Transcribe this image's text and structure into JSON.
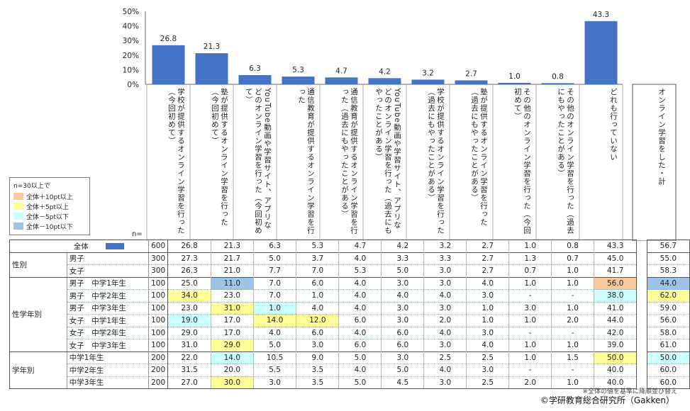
{
  "chart_data": {
    "type": "bar",
    "y_ticks": [
      "50%",
      "40%",
      "30%",
      "20%",
      "10%",
      "0%"
    ],
    "ylim": [
      0,
      50
    ],
    "categories": [
      "学校が提供するオンライン学習を行った（今回初めて）",
      "塾が提供するオンライン学習を行った（今回初めて）",
      "YouTube動画や学習サイト、アプリなどのオンライン学習を行った（今回初めて）",
      "通信教育が提供するオンライン学習を行った",
      "通信教育が提供するオンライン学習を行った（過去にもやったことがある）",
      "YouTube動画や学習サイト、アプリなどのオンライン学習を行った（過去にもやったことがある）",
      "学校が提供するオンライン学習を行った（過去にもやったことがある）",
      "塾が提供するオンライン学習を行った（過去にもやったことがある）",
      "その他のオンライン学習を行った（今回初めて）",
      "その他のオンライン学習を行った（過去にもやったことがある）",
      "どれも行っていない"
    ],
    "values": [
      26.8,
      21.3,
      6.3,
      5.3,
      4.7,
      4.2,
      3.2,
      2.7,
      1.0,
      0.8,
      43.3
    ],
    "value_labels": [
      "26.8",
      "21.3",
      "6.3",
      "5.3",
      "4.7",
      "4.2",
      "3.2",
      "2.7",
      "1.0",
      "0.8",
      "43.3"
    ],
    "bar_color": "#4472c4",
    "last_column_header": "オンライン学習をした・計"
  },
  "legend": {
    "title": "n=30以上で",
    "items": [
      {
        "label": "全体＋10pt以上",
        "color": "#f8c99c"
      },
      {
        "label": "全体＋5pt以上",
        "color": "#ffff99"
      },
      {
        "label": "全体－5pt以下",
        "color": "#ccffff"
      },
      {
        "label": "全体－10pt以下",
        "color": "#9dc3e6"
      }
    ]
  },
  "n_label": "n=",
  "total_row": {
    "label": "全体",
    "n": "600",
    "values": [
      "26.8",
      "21.3",
      "6.3",
      "5.3",
      "4.7",
      "4.2",
      "3.2",
      "2.7",
      "1.0",
      "0.8",
      "43.3",
      "56.7"
    ]
  },
  "groups": [
    {
      "label": "性別",
      "rows": [
        {
          "label": "男子",
          "n": "300",
          "values": [
            "27.3",
            "21.7",
            "5.0",
            "3.7",
            "4.0",
            "3.3",
            "3.3",
            "2.7",
            "1.3",
            "0.7",
            "45.0",
            "55.0"
          ],
          "hl": [
            null,
            null,
            null,
            null,
            null,
            null,
            null,
            null,
            null,
            null,
            null,
            null
          ]
        },
        {
          "label": "女子",
          "n": "300",
          "values": [
            "26.3",
            "21.0",
            "7.7",
            "7.0",
            "5.3",
            "5.0",
            "3.0",
            "2.7",
            "0.7",
            "1.0",
            "41.7",
            "58.3"
          ],
          "hl": [
            null,
            null,
            null,
            null,
            null,
            null,
            null,
            null,
            null,
            null,
            null,
            null
          ]
        }
      ]
    },
    {
      "label": "性学年別",
      "rows": [
        {
          "label": "男子　中学1年生",
          "n": "100",
          "values": [
            "25.0",
            "11.0",
            "7.0",
            "6.0",
            "4.0",
            "3.0",
            "3.0",
            "4.0",
            "1.0",
            "1.0",
            "56.0",
            "44.0"
          ],
          "hl": [
            null,
            "m10",
            null,
            null,
            null,
            null,
            null,
            null,
            null,
            null,
            "p10",
            "m10"
          ]
        },
        {
          "label": "男子　中学2年生",
          "n": "100",
          "values": [
            "34.0",
            "23.0",
            "7.0",
            "1.0",
            "4.0",
            "4.0",
            "4.0",
            "3.0",
            "-",
            "-",
            "38.0",
            "62.0"
          ],
          "hl": [
            "p5",
            null,
            null,
            null,
            null,
            null,
            null,
            null,
            null,
            null,
            "m5",
            "p5"
          ]
        },
        {
          "label": "男子　中学3年生",
          "n": "100",
          "values": [
            "23.0",
            "31.0",
            "1.0",
            "4.0",
            "4.0",
            "3.0",
            "3.0",
            "1.0",
            "3.0",
            "1.0",
            "41.0",
            "59.0"
          ],
          "hl": [
            null,
            "p5",
            "m5",
            null,
            null,
            null,
            null,
            null,
            null,
            null,
            null,
            null
          ]
        },
        {
          "label": "女子　中学1年生",
          "n": "100",
          "values": [
            "19.0",
            "17.0",
            "14.0",
            "12.0",
            "6.0",
            "3.0",
            "2.0",
            "1.0",
            "1.0",
            "2.0",
            "44.0",
            "56.0"
          ],
          "hl": [
            "m5",
            null,
            "p5",
            "p5",
            null,
            null,
            null,
            null,
            null,
            null,
            null,
            null
          ]
        },
        {
          "label": "女子　中学2年生",
          "n": "100",
          "values": [
            "29.0",
            "17.0",
            "4.0",
            "6.0",
            "4.0",
            "6.0",
            "4.0",
            "3.0",
            "-",
            "-",
            "42.0",
            "58.0"
          ],
          "hl": [
            null,
            null,
            null,
            null,
            null,
            null,
            null,
            null,
            null,
            null,
            null,
            null
          ]
        },
        {
          "label": "女子　中学3年生",
          "n": "100",
          "values": [
            "31.0",
            "29.0",
            "5.0",
            "3.0",
            "6.0",
            "6.0",
            "3.0",
            "4.0",
            "1.0",
            "1.0",
            "39.0",
            "61.0"
          ],
          "hl": [
            null,
            "p5",
            null,
            null,
            null,
            null,
            null,
            null,
            null,
            null,
            null,
            null
          ]
        }
      ]
    },
    {
      "label": "学年別",
      "rows": [
        {
          "label": "中学1年生",
          "n": "200",
          "values": [
            "22.0",
            "14.0",
            "10.5",
            "9.0",
            "5.0",
            "3.0",
            "2.5",
            "2.5",
            "1.0",
            "1.5",
            "50.0",
            "50.0"
          ],
          "hl": [
            null,
            "m5",
            null,
            null,
            null,
            null,
            null,
            null,
            null,
            null,
            "p5",
            "m5"
          ]
        },
        {
          "label": "中学2年生",
          "n": "200",
          "values": [
            "31.5",
            "20.0",
            "5.5",
            "3.5",
            "4.0",
            "5.0",
            "4.0",
            "3.0",
            "-",
            "-",
            "40.0",
            "60.0"
          ],
          "hl": [
            null,
            null,
            null,
            null,
            null,
            null,
            null,
            null,
            null,
            null,
            null,
            null
          ]
        },
        {
          "label": "中学3年生",
          "n": "200",
          "values": [
            "27.0",
            "30.0",
            "3.0",
            "3.5",
            "5.0",
            "4.5",
            "3.0",
            "2.5",
            "2.0",
            "1.0",
            "40.0",
            "60.0"
          ],
          "hl": [
            null,
            "p5",
            null,
            null,
            null,
            null,
            null,
            null,
            null,
            null,
            null,
            null
          ]
        }
      ]
    }
  ],
  "hl_colors": {
    "p10": "#f8c99c",
    "p5": "#ffff99",
    "m5": "#ccffff",
    "m10": "#9dc3e6"
  },
  "footer": {
    "note": "※全体の値を基準に降順並び替え",
    "copyright": "©学研教育総合研究所（Gakken）"
  }
}
